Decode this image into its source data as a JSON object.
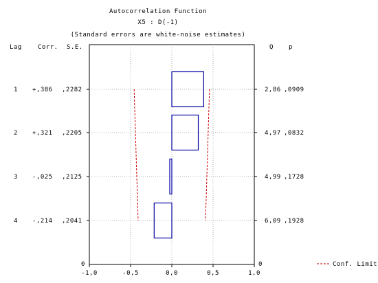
{
  "chart_data": {
    "type": "bar",
    "title": "Autocorrelation Function",
    "subtitle": "X5    : D(-1)",
    "note": "(Standard errors are white-noise estimates)",
    "column_headers": {
      "lag": "Lag",
      "corr": "Corr.",
      "se": "S.E.",
      "q": "Q",
      "p": "p"
    },
    "xlim": [
      -1.0,
      1.0
    ],
    "x_ticks": [
      "-1,0",
      "-0,5",
      "0,0",
      "0,5",
      "1,0"
    ],
    "x_tick_values": [
      -1.0,
      -0.5,
      0.0,
      0.5,
      1.0
    ],
    "bar_color": "#0000a0",
    "conf_color": "#d00000",
    "rows": [
      {
        "lag": "1",
        "corr_label": "+,386",
        "se_label": ",2282",
        "q_label": "2,86",
        "p_label": ",0909",
        "value": 0.386,
        "se": 0.2282
      },
      {
        "lag": "2",
        "corr_label": "+,321",
        "se_label": ",2205",
        "q_label": "4,97",
        "p_label": ",0832",
        "value": 0.321,
        "se": 0.2205
      },
      {
        "lag": "3",
        "corr_label": "-,025",
        "se_label": ",2125",
        "q_label": "4,99",
        "p_label": ",1728",
        "value": -0.025,
        "se": 0.2125
      },
      {
        "lag": "4",
        "corr_label": "-,214",
        "se_label": ",2041",
        "q_label": "6,09",
        "p_label": ",1928",
        "value": -0.214,
        "se": 0.2041
      }
    ],
    "zero_row": {
      "lag": "0",
      "q": "0"
    },
    "legend": {
      "label": "Conf. Limit",
      "position": "bottom-right"
    }
  }
}
